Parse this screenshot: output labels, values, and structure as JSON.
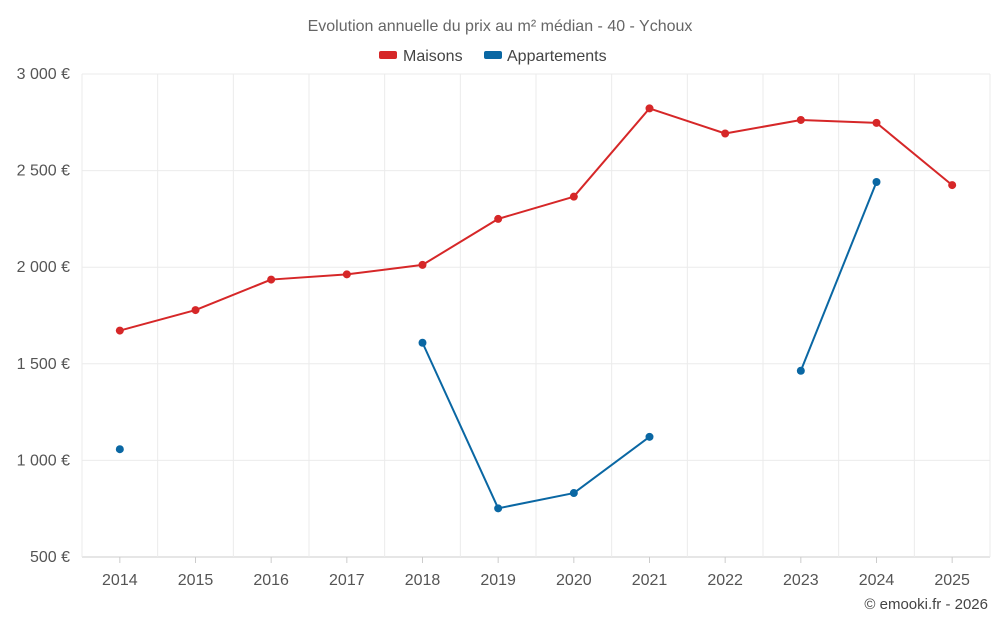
{
  "chart_data": {
    "type": "line",
    "title": "Evolution annuelle du prix au m² médian - 40 - Ychoux",
    "xlabel": "",
    "ylabel": "",
    "categories": [
      "2014",
      "2015",
      "2016",
      "2017",
      "2018",
      "2019",
      "2020",
      "2021",
      "2022",
      "2023",
      "2024",
      "2025"
    ],
    "ylim": [
      500,
      3000
    ],
    "yticks": [
      500,
      1000,
      1500,
      2000,
      2500,
      3000
    ],
    "ytick_labels": [
      "500 €",
      "1 000 €",
      "1 500 €",
      "2 000 €",
      "2 500 €",
      "3 000 €"
    ],
    "grid": true,
    "legend_position": "top-center",
    "series": [
      {
        "name": "Maisons",
        "color": "#d62728",
        "values": [
          1672,
          1778,
          1936,
          1963,
          2012,
          2250,
          2365,
          2822,
          2692,
          2762,
          2747,
          2425
        ]
      },
      {
        "name": "Appartements",
        "color": "#0a67a3",
        "values": [
          1058,
          null,
          null,
          null,
          1609,
          752,
          831,
          1122,
          null,
          1464,
          2441,
          null
        ]
      }
    ]
  },
  "credit": "© emooki.fr - 2026"
}
